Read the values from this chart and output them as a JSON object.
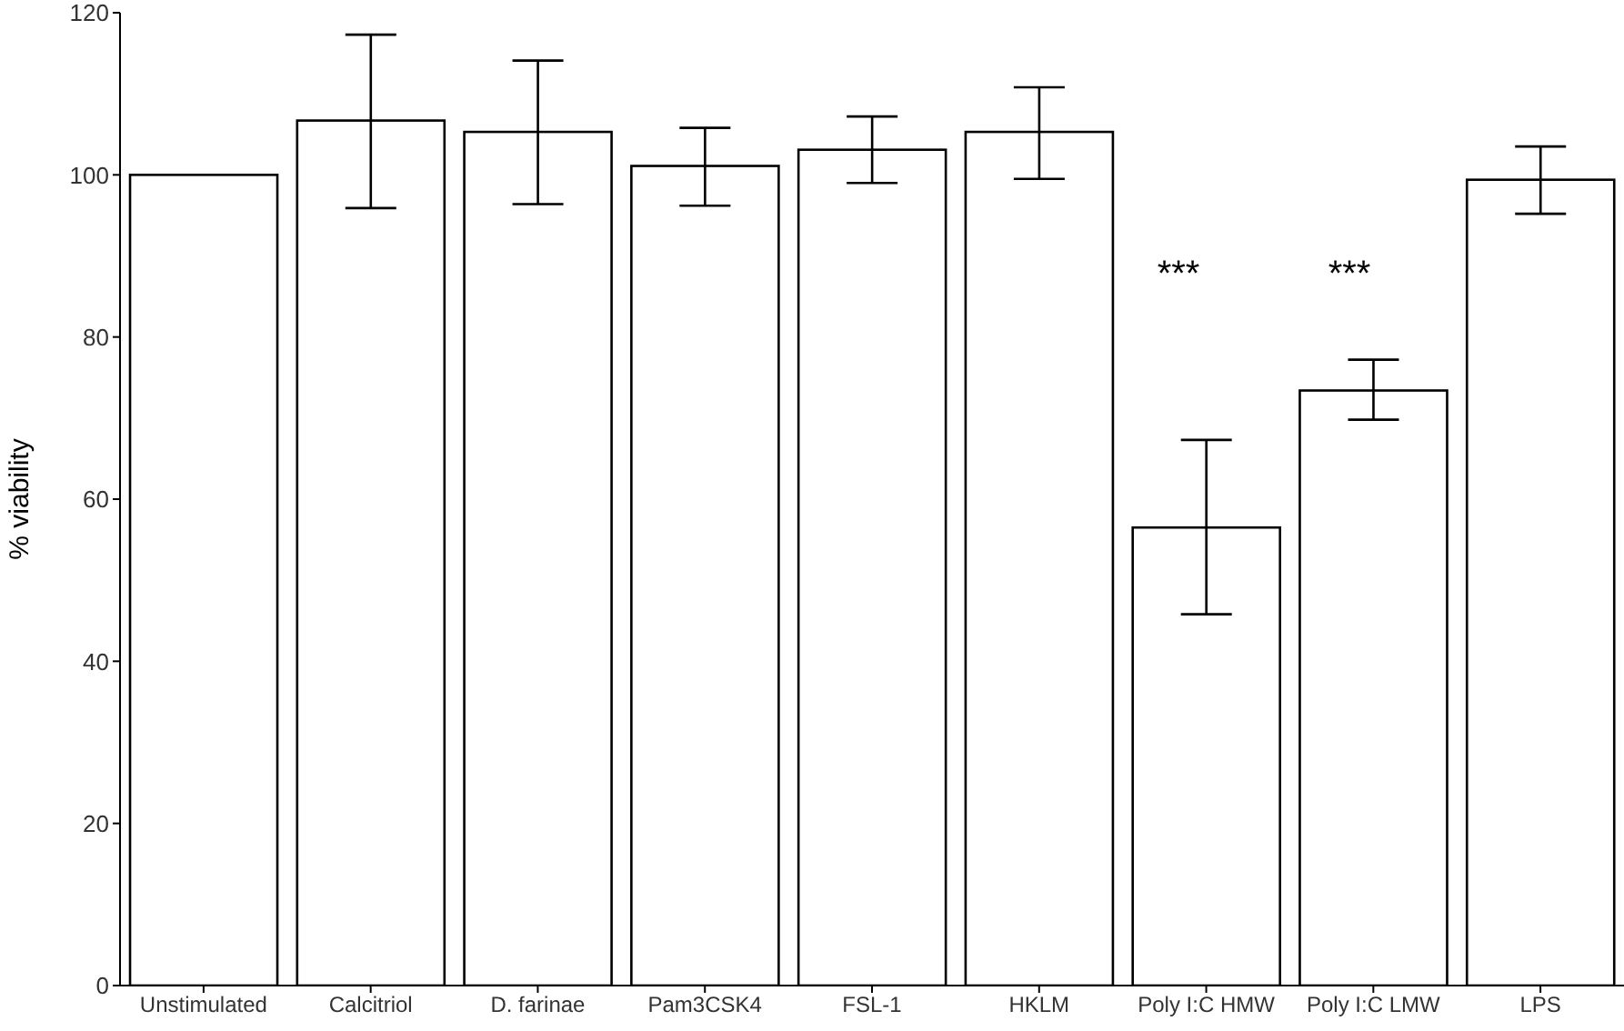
{
  "chart_data": {
    "type": "bar",
    "ylabel": "% viability",
    "categories": [
      "Unstimulated",
      "Calcitriol",
      "D. farinae",
      "Pam3CSK4",
      "FSL-1",
      "HKLM",
      "Poly I:C HMW",
      "Poly I:C LMW",
      "LPS"
    ],
    "values": [
      100,
      106.7,
      105.3,
      101.1,
      103.1,
      105.3,
      56.5,
      73.4,
      99.4
    ],
    "errors": [
      null,
      [
        95.9,
        117.3
      ],
      [
        96.4,
        114.1
      ],
      [
        96.2,
        105.8
      ],
      [
        99.0,
        107.2
      ],
      [
        99.5,
        110.8
      ],
      [
        45.8,
        67.3
      ],
      [
        69.8,
        77.2
      ],
      [
        95.2,
        103.5
      ]
    ],
    "color": "#ffffff",
    "ylim": [
      0,
      120
    ],
    "yticks": [
      0,
      20,
      40,
      60,
      80,
      100,
      120
    ],
    "grid": false,
    "legend": false,
    "annotations": [
      "***",
      "***"
    ]
  }
}
